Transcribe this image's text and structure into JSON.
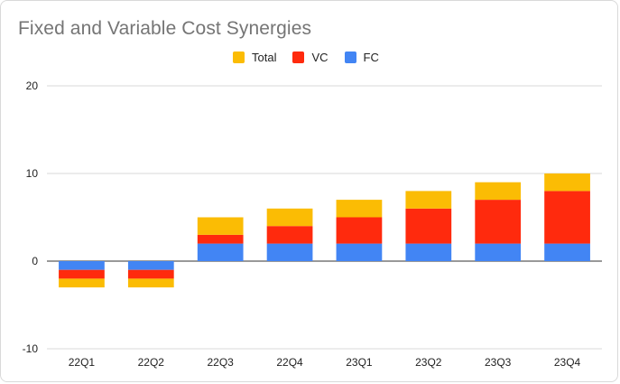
{
  "chart_data": {
    "type": "bar",
    "stacked": true,
    "title": "Fixed and Variable Cost Synergies",
    "xlabel": "",
    "ylabel": "",
    "categories": [
      "22Q1",
      "22Q2",
      "22Q3",
      "22Q4",
      "23Q1",
      "23Q2",
      "23Q3",
      "23Q4"
    ],
    "series": [
      {
        "name": "FC",
        "color": "#4285f4",
        "values": [
          -1,
          -1,
          2,
          2,
          2,
          2,
          2,
          2
        ]
      },
      {
        "name": "VC",
        "color": "#ff2a0d",
        "values": [
          -2,
          -2,
          3,
          4,
          5,
          6,
          7,
          8
        ]
      },
      {
        "name": "Total",
        "color": "#fbbc04",
        "values": [
          -3,
          -3,
          5,
          6,
          7,
          8,
          9,
          10
        ]
      }
    ],
    "legend_order": [
      "Total",
      "VC",
      "FC"
    ],
    "legend_position": "top",
    "ylim": [
      -10,
      20
    ],
    "yticks": [
      "-10",
      "0",
      "10",
      "20"
    ],
    "grid": true
  }
}
